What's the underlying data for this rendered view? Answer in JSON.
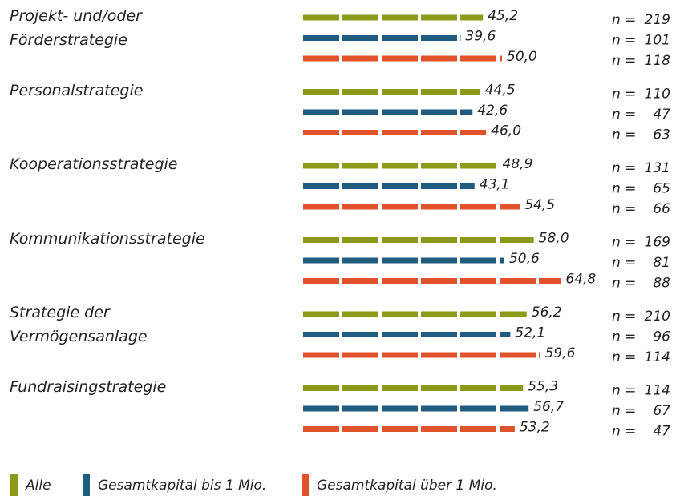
{
  "chart_data": {
    "type": "bar",
    "orientation": "horizontal",
    "categories": [
      "Projekt- und/oder Förderstrategie",
      "Personalstrategie",
      "Kooperationsstrategie",
      "Kommunikationsstrategie",
      "Strategie der Vermögensanlage",
      "Fundraisingstrategie"
    ],
    "n_prefix": "n =",
    "series": [
      {
        "name": "Alle",
        "color": "#8c9a1a",
        "values": [
          45.2,
          44.5,
          48.9,
          58.0,
          56.2,
          55.3
        ],
        "value_labels": [
          "45,2",
          "44,5",
          "48,9",
          "58,0",
          "56,2",
          "55,3"
        ],
        "n": [
          219,
          110,
          131,
          169,
          210,
          114
        ]
      },
      {
        "name": "Gesamtkapital bis 1 Mio.",
        "color": "#1f5c80",
        "values": [
          39.6,
          42.6,
          43.1,
          50.6,
          52.1,
          56.7
        ],
        "value_labels": [
          "39,6",
          "42,6",
          "43,1",
          "50,6",
          "52,1",
          "56,7"
        ],
        "n": [
          101,
          47,
          65,
          81,
          96,
          67
        ]
      },
      {
        "name": "Gesamtkapital über 1 Mio.",
        "color": "#e0522a",
        "values": [
          50.0,
          46.0,
          54.5,
          64.8,
          59.6,
          53.2
        ],
        "value_labels": [
          "50,0",
          "46,0",
          "54,5",
          "64,8",
          "59,6",
          "53,2"
        ],
        "n": [
          118,
          63,
          66,
          88,
          114,
          47
        ]
      }
    ]
  }
}
